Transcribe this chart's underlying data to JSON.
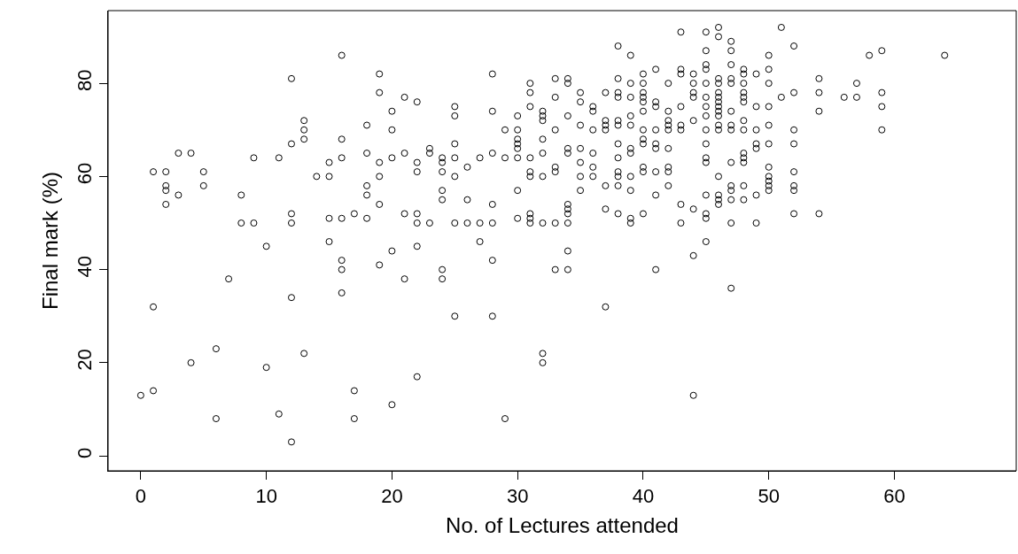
{
  "chart_data": {
    "type": "scatter",
    "xlabel": "No. of Lectures attended",
    "ylabel": "Final mark (%)",
    "marker": "circle",
    "xlim": [
      -2.6,
      69.7
    ],
    "ylim": [
      -3.2,
      95.6
    ],
    "xticks": [
      0,
      10,
      20,
      30,
      40,
      50,
      60
    ],
    "yticks": [
      0,
      20,
      40,
      60,
      80
    ],
    "series": [
      {
        "color": "#000000",
        "x": [
          0,
          1,
          1,
          1,
          2,
          2,
          2,
          2,
          3,
          3,
          4,
          4,
          5,
          5,
          6,
          6,
          7,
          8,
          8,
          9,
          9,
          10,
          10,
          11,
          11,
          12,
          12,
          12,
          12,
          12,
          12,
          13,
          13,
          13,
          13,
          14,
          15,
          15,
          15,
          15,
          16,
          16,
          16,
          16,
          16,
          16,
          16,
          17,
          17,
          17,
          18,
          18,
          18,
          18,
          18,
          19,
          19,
          19,
          19,
          19,
          19,
          20,
          20,
          20,
          20,
          20,
          21,
          21,
          21,
          21,
          22,
          22,
          22,
          22,
          22,
          22,
          22,
          23,
          23,
          23,
          24,
          24,
          24,
          24,
          24,
          24,
          24,
          25,
          25,
          25,
          25,
          25,
          25,
          25,
          26,
          26,
          26,
          27,
          27,
          27,
          28,
          28,
          28,
          28,
          28,
          28,
          28,
          29,
          29,
          29,
          30,
          30,
          30,
          30,
          30,
          30,
          30,
          30,
          31,
          31,
          31,
          31,
          31,
          31,
          31,
          31,
          31,
          32,
          32,
          32,
          32,
          32,
          32,
          32,
          32,
          32,
          33,
          33,
          33,
          33,
          33,
          33,
          33,
          34,
          34,
          34,
          34,
          34,
          34,
          34,
          34,
          34,
          34,
          34,
          35,
          35,
          35,
          35,
          35,
          35,
          35,
          36,
          36,
          36,
          36,
          36,
          36,
          37,
          37,
          37,
          37,
          37,
          37,
          37,
          38,
          38,
          38,
          38,
          38,
          38,
          38,
          38,
          38,
          38,
          38,
          38,
          39,
          39,
          39,
          39,
          39,
          39,
          39,
          39,
          39,
          39,
          39,
          40,
          40,
          40,
          40,
          40,
          40,
          40,
          40,
          40,
          40,
          40,
          40,
          41,
          41,
          41,
          41,
          41,
          41,
          41,
          41,
          41,
          42,
          42,
          42,
          42,
          42,
          42,
          42,
          42,
          42,
          43,
          43,
          43,
          43,
          43,
          43,
          43,
          43,
          44,
          44,
          44,
          44,
          44,
          44,
          44,
          44,
          45,
          45,
          45,
          45,
          45,
          45,
          45,
          45,
          45,
          45,
          45,
          45,
          45,
          45,
          45,
          45,
          46,
          46,
          46,
          46,
          46,
          46,
          46,
          46,
          46,
          46,
          46,
          46,
          46,
          46,
          46,
          46,
          47,
          47,
          47,
          47,
          47,
          47,
          47,
          47,
          47,
          47,
          47,
          47,
          47,
          47,
          48,
          48,
          48,
          48,
          48,
          48,
          48,
          48,
          48,
          48,
          48,
          48,
          48,
          49,
          49,
          49,
          49,
          49,
          49,
          49,
          50,
          50,
          50,
          50,
          50,
          50,
          50,
          50,
          50,
          50,
          50,
          51,
          51,
          52,
          52,
          52,
          52,
          52,
          52,
          52,
          52,
          54,
          54,
          54,
          54,
          56,
          57,
          57,
          58,
          59,
          59,
          59,
          59,
          64
        ],
        "values": [
          13,
          61,
          32,
          14,
          61,
          58,
          57,
          54,
          65,
          56,
          65,
          20,
          61,
          58,
          23,
          8,
          38,
          56,
          50,
          64,
          50,
          45,
          19,
          64,
          9,
          81,
          67,
          52,
          50,
          34,
          3,
          72,
          70,
          68,
          22,
          60,
          63,
          60,
          51,
          46,
          86,
          68,
          64,
          51,
          42,
          40,
          35,
          52,
          14,
          8,
          71,
          65,
          58,
          56,
          51,
          82,
          78,
          63,
          60,
          54,
          41,
          74,
          70,
          64,
          44,
          11,
          77,
          65,
          52,
          38,
          76,
          63,
          61,
          52,
          50,
          45,
          17,
          66,
          65,
          50,
          64,
          63,
          61,
          57,
          55,
          40,
          38,
          75,
          73,
          67,
          64,
          60,
          50,
          30,
          62,
          55,
          50,
          64,
          50,
          46,
          82,
          74,
          65,
          54,
          50,
          42,
          30,
          70,
          64,
          8,
          73,
          70,
          68,
          67,
          66,
          64,
          57,
          51,
          80,
          78,
          75,
          64,
          61,
          60,
          52,
          51,
          50,
          74,
          73,
          72,
          68,
          65,
          60,
          50,
          22,
          20,
          81,
          77,
          70,
          62,
          61,
          50,
          40,
          81,
          80,
          73,
          66,
          65,
          54,
          53,
          52,
          50,
          44,
          40,
          78,
          76,
          71,
          66,
          63,
          60,
          57,
          75,
          74,
          70,
          65,
          62,
          60,
          78,
          72,
          71,
          70,
          58,
          53,
          32,
          88,
          81,
          78,
          77,
          72,
          71,
          67,
          64,
          61,
          60,
          58,
          52,
          86,
          80,
          77,
          73,
          71,
          66,
          65,
          60,
          57,
          51,
          50,
          82,
          80,
          78,
          77,
          76,
          74,
          70,
          68,
          67,
          62,
          61,
          52,
          83,
          76,
          75,
          70,
          67,
          66,
          61,
          56,
          40,
          80,
          74,
          72,
          71,
          70,
          66,
          62,
          61,
          58,
          91,
          83,
          82,
          75,
          71,
          70,
          54,
          50,
          82,
          80,
          78,
          77,
          72,
          53,
          43,
          13,
          91,
          87,
          84,
          83,
          80,
          77,
          75,
          73,
          70,
          67,
          64,
          63,
          56,
          52,
          51,
          46,
          92,
          90,
          81,
          80,
          78,
          77,
          76,
          75,
          74,
          73,
          71,
          70,
          60,
          56,
          55,
          54,
          89,
          87,
          84,
          81,
          80,
          74,
          71,
          70,
          63,
          58,
          57,
          55,
          50,
          36,
          83,
          82,
          80,
          78,
          77,
          76,
          72,
          70,
          65,
          64,
          63,
          58,
          55,
          82,
          75,
          70,
          67,
          66,
          56,
          50,
          86,
          83,
          80,
          75,
          71,
          67,
          62,
          60,
          59,
          58,
          57,
          92,
          77,
          88,
          78,
          70,
          67,
          61,
          58,
          57,
          52,
          81,
          78,
          74,
          52,
          77,
          80,
          77,
          86,
          87,
          78,
          75,
          70,
          86
        ]
      }
    ]
  }
}
